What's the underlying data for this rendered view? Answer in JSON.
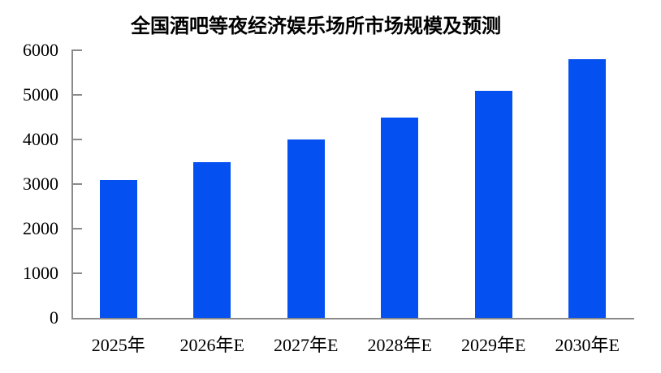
{
  "chart_data": {
    "type": "bar",
    "title": "全国酒吧等夜经济娱乐场所市场规模及预测",
    "categories": [
      "2025年",
      "2026年E",
      "2027年E",
      "2028年E",
      "2029年E",
      "2030年E"
    ],
    "values": [
      3100,
      3500,
      4000,
      4500,
      5100,
      5800
    ],
    "xlabel": "",
    "ylabel": "",
    "ylim": [
      0,
      6000
    ],
    "y_ticks": [
      0,
      1000,
      2000,
      3000,
      4000,
      5000,
      6000
    ],
    "grid": false,
    "legend": false,
    "bar_color": "#0550f0",
    "axis_color": "#8a8a8a",
    "text_color": "#000000",
    "background": "#ffffff"
  }
}
